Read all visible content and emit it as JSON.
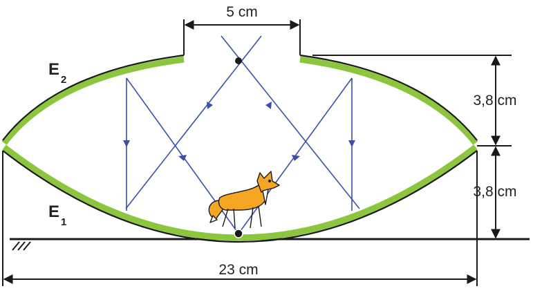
{
  "diagram": {
    "labels": {
      "mirror_top": "E",
      "mirror_top_sub": "2",
      "mirror_bottom": "E",
      "mirror_bottom_sub": "1",
      "gap_width": "5 cm",
      "upper_height": "3,8 cm",
      "lower_height": "3,8 cm",
      "total_width": "23 cm"
    },
    "colors": {
      "mirror_green": "#8cc63f",
      "ray_blue": "#3b4fa8",
      "line_black": "#1a1a1a",
      "fox_orange": "#f5a623"
    },
    "icons": [
      "fox-figure",
      "ground-hatch-icon",
      "focal-point-icon"
    ]
  }
}
